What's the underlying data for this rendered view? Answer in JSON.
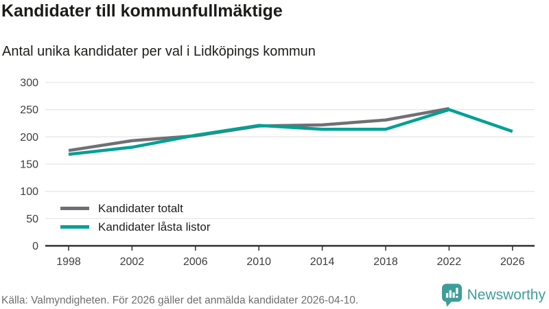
{
  "header": {
    "title": "Kandidater till kommunfullmäktige",
    "subtitle": "Antal unika kandidater per val i Lidköpings kommun"
  },
  "chart_data": {
    "type": "line",
    "title": "Kandidater till kommunfullmäktige",
    "subtitle": "Antal unika kandidater per val i Lidköpings kommun",
    "x": [
      1998,
      2002,
      2006,
      2010,
      2014,
      2018,
      2022,
      2026
    ],
    "series": [
      {
        "name": "Kandidater totalt",
        "color": "#716f74",
        "values": [
          175,
          193,
          202,
          220,
          222,
          231,
          252,
          null
        ]
      },
      {
        "name": "Kandidater låsta listor",
        "color": "#00a094",
        "values": [
          168,
          181,
          203,
          221,
          214,
          214,
          250,
          210
        ]
      }
    ],
    "xlabel": "",
    "ylabel": "",
    "ylim": [
      0,
      300
    ],
    "yticks": [
      0,
      50,
      100,
      150,
      200,
      250,
      300
    ],
    "grid": true,
    "legend_position": "inside-bottom-left"
  },
  "footer": {
    "source": "Källa: Valmyndigheten. För 2026 gäller det anmälda kandidater 2026-04-10.",
    "brand": "Newsworthy"
  },
  "colors": {
    "line_gray": "#716f74",
    "line_teal": "#00a094",
    "brand_teal": "#3e9d99",
    "grid": "#e7e7e7",
    "axis": "#2e2e2e",
    "tick_text": "#3d3d3d",
    "title_text": "#1a1c18",
    "muted_text": "#6e6e6e"
  }
}
